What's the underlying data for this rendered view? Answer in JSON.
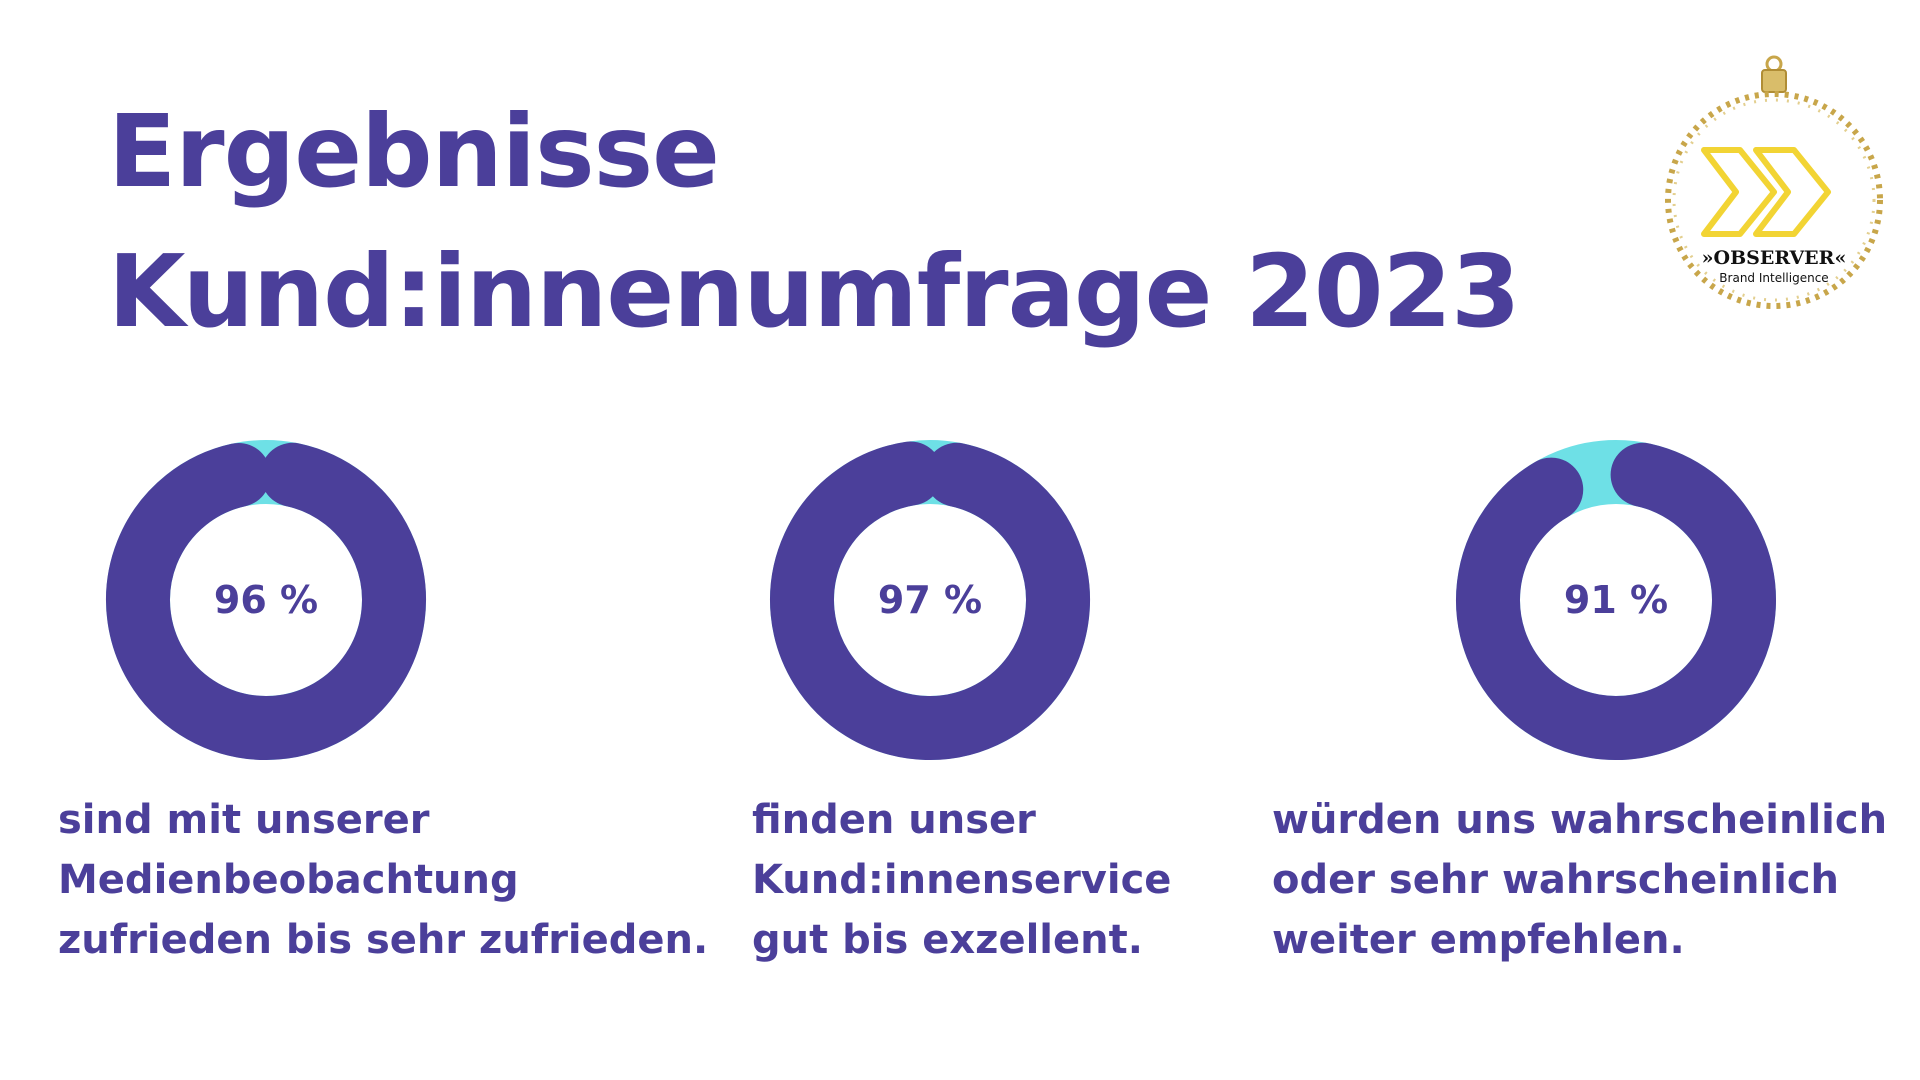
{
  "title": {
    "line1": "Ergebnisse",
    "line2": "Kund:innenumfrage 2023"
  },
  "logo": {
    "wordmark": "»OBSERVER«",
    "tagline": "Brand Intelligence",
    "icon": "double-chevron-ornament-icon"
  },
  "colors": {
    "primary": "#4b3f9a",
    "accent": "#6ee0e6",
    "gold": "#c8a64a",
    "chevron": "#f2d434"
  },
  "chart_data": [
    {
      "type": "pie",
      "variant": "donut",
      "value": 96,
      "remainder": 4,
      "label": "96 %",
      "caption": [
        "sind mit unserer",
        "Medienbeobachtung",
        "zufrieden bis sehr zufrieden."
      ]
    },
    {
      "type": "pie",
      "variant": "donut",
      "value": 97,
      "remainder": 3,
      "label": "97 %",
      "caption": [
        "finden unser",
        "Kund:innenservice",
        "gut bis exzellent."
      ]
    },
    {
      "type": "pie",
      "variant": "donut",
      "value": 91,
      "remainder": 9,
      "label": "91 %",
      "caption": [
        "würden uns wahrscheinlich",
        "oder sehr wahrscheinlich",
        "weiter empfehlen."
      ]
    }
  ]
}
